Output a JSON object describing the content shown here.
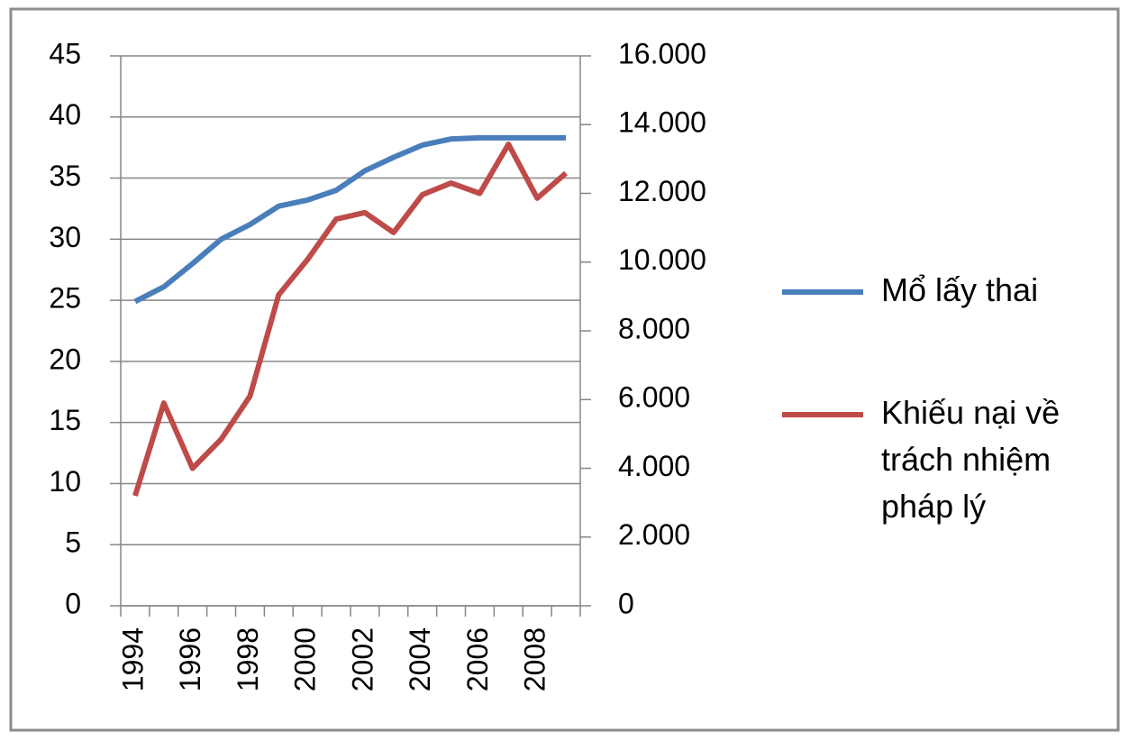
{
  "chart_data": {
    "type": "line",
    "categories": [
      "1994",
      null,
      "1996",
      null,
      "1998",
      null,
      "2000",
      null,
      "2002",
      null,
      "2004",
      null,
      "2006",
      null,
      "2008",
      null
    ],
    "series": [
      {
        "name": "Mổ lấy thai",
        "color": "#4a7ebb",
        "values": [
          24.9,
          26.1,
          28.0,
          30.0,
          31.2,
          32.7,
          33.2,
          34.0,
          35.6,
          36.7,
          37.7,
          38.2,
          38.3,
          38.3,
          38.3,
          38.3
        ]
      },
      {
        "name": "Khiếu nại về trách nhiệm pháp lý",
        "color": "#be4b48",
        "axis": "y2",
        "values": [
          3200,
          5900,
          4000,
          4850,
          6100,
          9050,
          10070,
          11250,
          11440,
          10860,
          11960,
          12300,
          12000,
          13430,
          11860,
          12590
        ]
      }
    ],
    "ylim": [
      0,
      45
    ],
    "yticks": [
      0,
      5,
      10,
      15,
      20,
      25,
      30,
      35,
      40,
      45
    ],
    "y2lim": [
      0,
      16000
    ],
    "y2ticks": [
      0,
      {
        "value": 2000,
        "label": "2.000"
      },
      {
        "value": 4000,
        "label": "4.000"
      },
      {
        "value": 6000,
        "label": "6.000"
      },
      {
        "value": 8000,
        "label": "8.000"
      },
      {
        "value": 10000,
        "label": "10.000"
      },
      {
        "value": 12000,
        "label": "12.000"
      },
      {
        "value": 14000,
        "label": "14.000"
      },
      {
        "value": 16000,
        "label": "16.000"
      }
    ],
    "grid": true,
    "legend": "right"
  }
}
